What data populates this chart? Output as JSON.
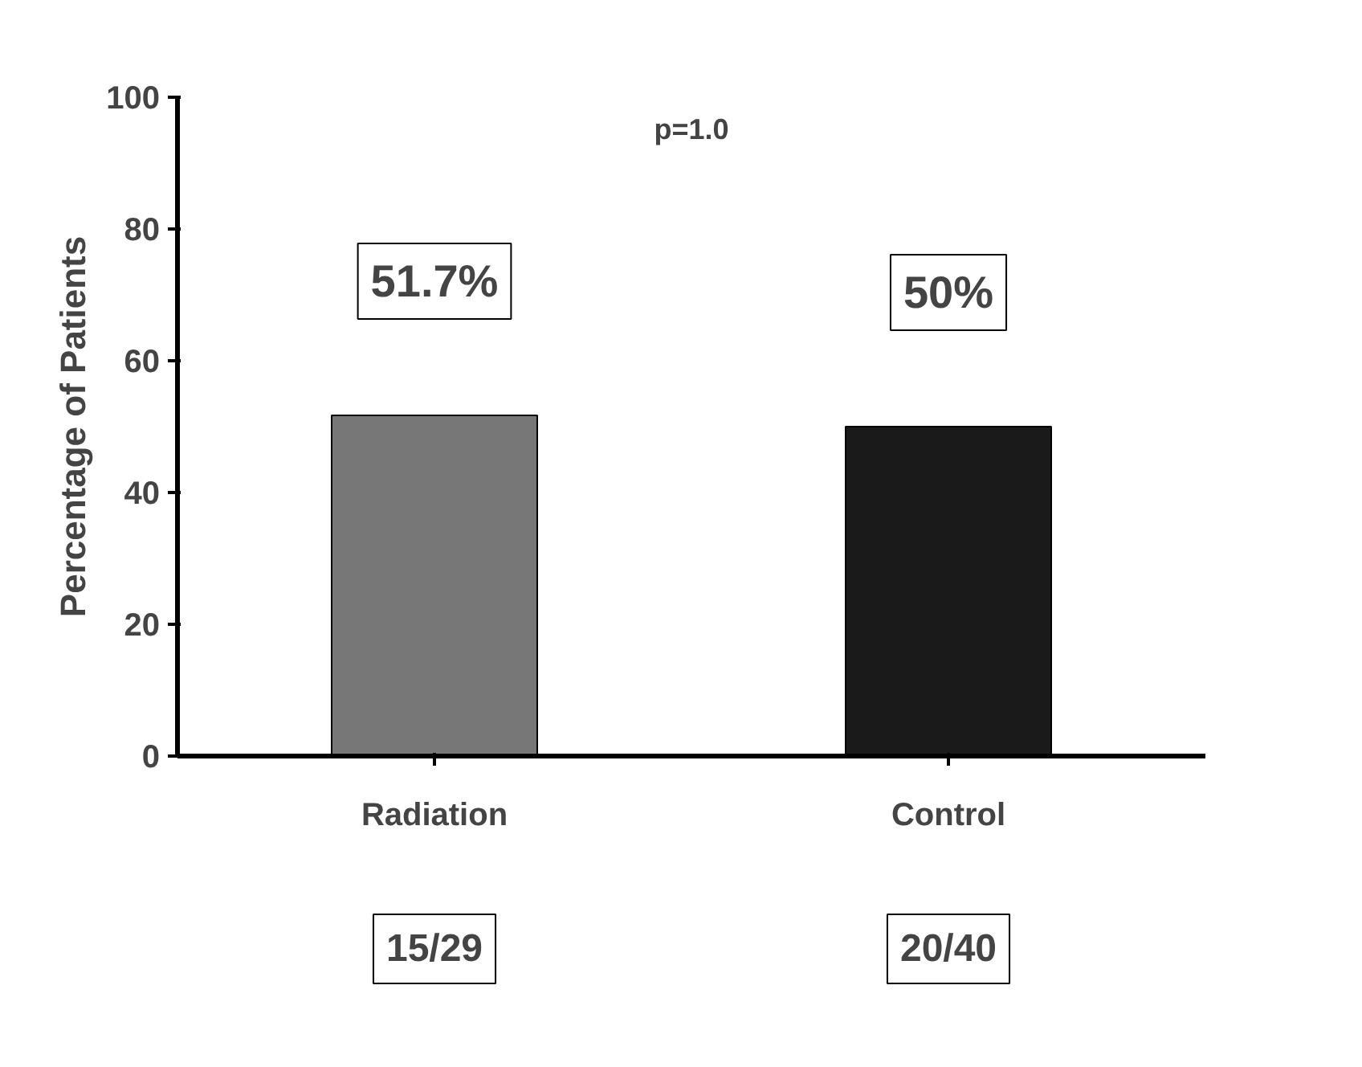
{
  "chart_data": {
    "type": "bar",
    "ylabel": "Percentage of Patients",
    "categories": [
      "Radiation",
      "Control"
    ],
    "values": [
      51.7,
      50
    ],
    "colors": [
      "#777777",
      "#1a1a1a"
    ],
    "value_labels": [
      "51.7%",
      "50%"
    ],
    "ylim": [
      0,
      100
    ],
    "yticks": [
      0,
      20,
      40,
      60,
      80,
      100
    ],
    "grid": false,
    "annotations": [
      "p=1.0",
      "15/29",
      "20/40"
    ]
  }
}
